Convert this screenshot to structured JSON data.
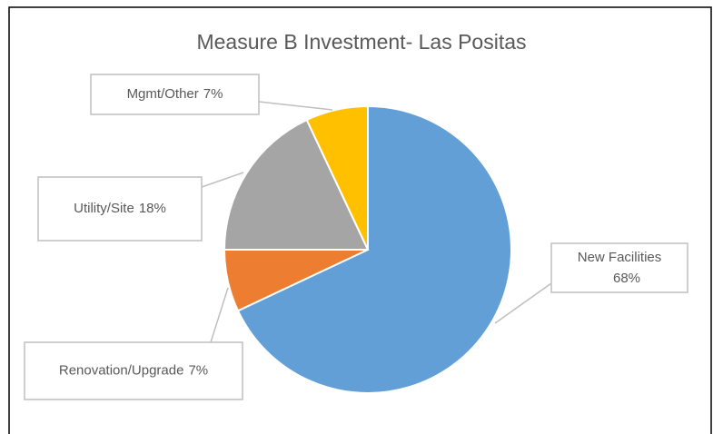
{
  "chart_data": {
    "type": "pie",
    "title": "Measure B Investment- Las Positas",
    "categories": [
      "New Facilities",
      "Renovation/Upgrade",
      "Utility/Site",
      "Mgmt/Other"
    ],
    "values": [
      68,
      7,
      18,
      7
    ],
    "value_labels": [
      "68%",
      "7%",
      "18%",
      "7%"
    ],
    "colors": [
      "#629fd6",
      "#ed7d31",
      "#a5a5a5",
      "#ffc000"
    ]
  }
}
